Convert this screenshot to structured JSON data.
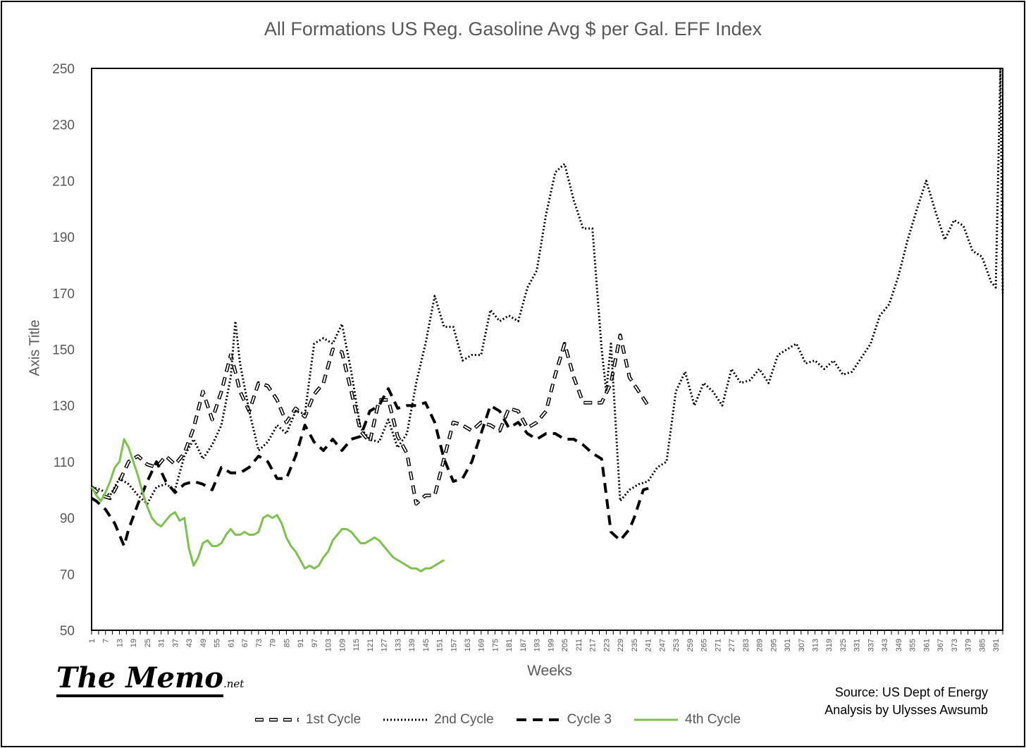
{
  "chart_data": {
    "type": "line",
    "title": "All Formations US Reg. Gasoline Avg $ per Gal. EFF Index",
    "xlabel": "Weeks",
    "ylabel": "Axis Title",
    "ylim": [
      50,
      250
    ],
    "yticks": [
      50,
      70,
      90,
      110,
      130,
      150,
      170,
      190,
      210,
      230,
      250
    ],
    "xlim": [
      1,
      394
    ],
    "xticks": [
      1,
      7,
      13,
      19,
      25,
      31,
      37,
      43,
      49,
      55,
      61,
      67,
      73,
      79,
      85,
      91,
      97,
      103,
      109,
      115,
      121,
      127,
      133,
      139,
      145,
      151,
      157,
      163,
      169,
      175,
      181,
      187,
      193,
      199,
      205,
      211,
      217,
      223,
      229,
      235,
      241,
      247,
      253,
      259,
      265,
      271,
      277,
      283,
      289,
      295,
      301,
      307,
      313,
      319,
      325,
      331,
      337,
      343,
      349,
      355,
      361,
      367,
      373,
      379,
      385,
      391
    ],
    "grid": false,
    "legend_position": "bottom",
    "series": [
      {
        "name": "1st Cycle",
        "style": "double-dash",
        "color": "#000000",
        "x": [
          1,
          5,
          9,
          13,
          17,
          21,
          25,
          29,
          33,
          37,
          41,
          45,
          49,
          53,
          57,
          61,
          63,
          65,
          69,
          73,
          77,
          81,
          85,
          89,
          93,
          97,
          101,
          105,
          109,
          113,
          117,
          121,
          125,
          129,
          133,
          137,
          141,
          145,
          149,
          153,
          157,
          161,
          165,
          169,
          173,
          177,
          181,
          185,
          189,
          193,
          197,
          201,
          205,
          209,
          213,
          217,
          221,
          225,
          229,
          233,
          237,
          241
        ],
        "y": [
          101,
          98,
          97,
          103,
          110,
          112,
          109,
          108,
          112,
          109,
          113,
          122,
          135,
          125,
          135,
          148,
          142,
          135,
          128,
          138,
          137,
          132,
          124,
          129,
          126,
          134,
          138,
          150,
          149,
          135,
          121,
          117,
          132,
          132,
          119,
          113,
          95,
          98,
          98,
          111,
          124,
          123,
          121,
          124,
          123,
          121,
          129,
          128,
          122,
          124,
          128,
          141,
          152,
          140,
          131,
          131,
          131,
          138,
          155,
          140,
          135,
          130
        ]
      },
      {
        "name": "2nd Cycle",
        "style": "dotted",
        "color": "#000000",
        "x": [
          1,
          5,
          9,
          13,
          17,
          21,
          25,
          29,
          33,
          37,
          41,
          45,
          49,
          53,
          57,
          61,
          63,
          65,
          69,
          73,
          77,
          81,
          85,
          89,
          93,
          97,
          101,
          105,
          109,
          113,
          117,
          121,
          125,
          129,
          133,
          137,
          141,
          145,
          149,
          153,
          157,
          161,
          165,
          169,
          173,
          177,
          181,
          185,
          189,
          193,
          197,
          201,
          205,
          209,
          213,
          217,
          221,
          223,
          225,
          229,
          233,
          237,
          241,
          245,
          249,
          253,
          257,
          261,
          265,
          269,
          273,
          277,
          281,
          285,
          289,
          293,
          297,
          301,
          305,
          309,
          313,
          317,
          321,
          325,
          329,
          333,
          337,
          341,
          345,
          349,
          353,
          357,
          361,
          365,
          369,
          373,
          377,
          381,
          385,
          389,
          391,
          393,
          394
        ],
        "y": [
          101,
          100,
          98,
          104,
          102,
          98,
          95,
          101,
          102,
          100,
          112,
          118,
          111,
          116,
          123,
          140,
          160,
          145,
          128,
          114,
          117,
          123,
          120,
          128,
          127,
          152,
          154,
          152,
          159,
          142,
          122,
          118,
          117,
          125,
          115,
          120,
          138,
          152,
          169,
          158,
          158,
          146,
          148,
          148,
          164,
          160,
          162,
          160,
          172,
          178,
          198,
          213,
          216,
          203,
          193,
          193,
          150,
          135,
          152,
          96,
          100,
          102,
          103,
          108,
          110,
          135,
          142,
          130,
          138,
          135,
          130,
          143,
          138,
          139,
          143,
          138,
          148,
          150,
          152,
          145,
          146,
          143,
          146,
          141,
          142,
          147,
          152,
          162,
          166,
          176,
          189,
          200,
          210,
          199,
          189,
          196,
          194,
          185,
          183,
          174,
          172,
          250,
          170
        ]
      },
      {
        "name": "Cycle 3",
        "style": "dashed",
        "color": "#000000",
        "x": [
          1,
          3,
          7,
          11,
          15,
          17,
          21,
          25,
          29,
          33,
          37,
          41,
          45,
          49,
          53,
          57,
          61,
          65,
          69,
          73,
          77,
          81,
          85,
          89,
          93,
          97,
          101,
          105,
          109,
          113,
          117,
          121,
          125,
          129,
          133,
          137,
          141,
          145,
          149,
          153,
          157,
          161,
          165,
          169,
          173,
          177,
          181,
          185,
          189,
          193,
          197,
          201,
          205,
          209,
          213,
          217,
          221,
          225,
          229,
          233,
          235,
          239,
          243
        ],
        "y": [
          97,
          96,
          93,
          88,
          80,
          86,
          95,
          103,
          110,
          103,
          99,
          102,
          103,
          102,
          100,
          108,
          106,
          106,
          108,
          112,
          110,
          104,
          104,
          112,
          123,
          117,
          114,
          118,
          114,
          118,
          119,
          128,
          130,
          136,
          129,
          130,
          130,
          131,
          124,
          111,
          103,
          104,
          110,
          120,
          130,
          128,
          122,
          124,
          120,
          118,
          120,
          120,
          118,
          118,
          116,
          113,
          111,
          85,
          82,
          86,
          90,
          100,
          101
        ]
      },
      {
        "name": "4th Cycle",
        "style": "solid",
        "color": "#7dc24b",
        "x": [
          1,
          3,
          5,
          7,
          9,
          11,
          13,
          15,
          17,
          19,
          21,
          23,
          25,
          27,
          29,
          31,
          33,
          35,
          37,
          39,
          41,
          43,
          45,
          47,
          49,
          51,
          53,
          55,
          57,
          59,
          61,
          63,
          65,
          67,
          69,
          71,
          73,
          75,
          77,
          79,
          81,
          83,
          85,
          87,
          89,
          91,
          93,
          95,
          97,
          99,
          101,
          103,
          105,
          107,
          109,
          111,
          113,
          115,
          117,
          119,
          121,
          123,
          125,
          127,
          129,
          131,
          133,
          135,
          137,
          139,
          141,
          143,
          145,
          147,
          149,
          151,
          153
        ],
        "y": [
          101,
          98,
          96,
          99,
          103,
          108,
          110,
          118,
          115,
          110,
          105,
          99,
          94,
          90,
          88,
          87,
          89,
          91,
          92,
          89,
          90,
          79,
          73,
          76,
          81,
          82,
          80,
          80,
          81,
          84,
          86,
          84,
          84,
          85,
          84,
          84,
          85,
          90,
          91,
          90,
          91,
          88,
          83,
          80,
          78,
          75,
          72,
          73,
          72,
          73,
          76,
          78,
          82,
          84,
          86,
          86,
          85,
          83,
          81,
          81,
          82,
          83,
          82,
          80,
          78,
          76,
          75,
          74,
          73,
          72,
          72,
          71,
          72,
          72,
          73,
          74,
          75
        ]
      }
    ]
  },
  "branding": {
    "logo_main": "The Memo",
    "logo_sub": ".net"
  },
  "source": {
    "line1": "Source: US Dept of Energy",
    "line2": "Analysis by Ulysses Awsumb"
  }
}
